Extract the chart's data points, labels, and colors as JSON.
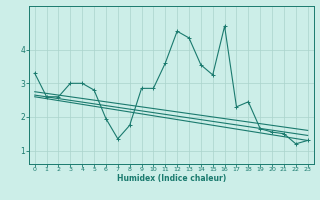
{
  "xlabel": "Humidex (Indice chaleur)",
  "bg_color": "#cceee8",
  "grid_color": "#aad4cc",
  "line_color": "#1a7a6e",
  "xlim": [
    -0.5,
    23.5
  ],
  "ylim": [
    0.6,
    5.3
  ],
  "xticks": [
    0,
    1,
    2,
    3,
    4,
    5,
    6,
    7,
    8,
    9,
    10,
    11,
    12,
    13,
    14,
    15,
    16,
    17,
    18,
    19,
    20,
    21,
    22,
    23
  ],
  "yticks": [
    1,
    2,
    3,
    4
  ],
  "series1": [
    [
      0,
      3.3
    ],
    [
      1,
      2.6
    ],
    [
      2,
      2.6
    ],
    [
      3,
      3.0
    ],
    [
      4,
      3.0
    ],
    [
      5,
      2.8
    ],
    [
      6,
      1.95
    ],
    [
      7,
      1.35
    ],
    [
      8,
      1.75
    ],
    [
      9,
      2.85
    ],
    [
      10,
      2.85
    ],
    [
      11,
      3.6
    ],
    [
      12,
      4.55
    ],
    [
      13,
      4.35
    ],
    [
      14,
      3.55
    ],
    [
      15,
      3.25
    ],
    [
      16,
      4.7
    ],
    [
      17,
      2.3
    ],
    [
      18,
      2.45
    ],
    [
      19,
      1.65
    ],
    [
      20,
      1.55
    ],
    [
      21,
      1.5
    ],
    [
      22,
      1.2
    ],
    [
      23,
      1.3
    ]
  ],
  "series2_linear": [
    [
      0,
      2.75
    ],
    [
      23,
      1.6
    ]
  ],
  "series3_linear": [
    [
      0,
      2.6
    ],
    [
      23,
      1.3
    ]
  ],
  "series4_linear": [
    [
      0,
      2.65
    ],
    [
      23,
      1.45
    ]
  ]
}
